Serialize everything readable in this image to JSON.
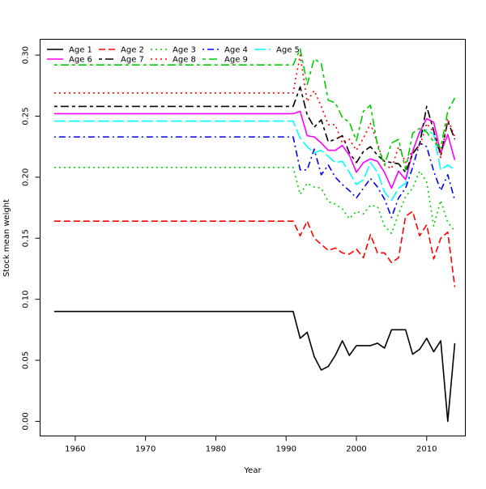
{
  "chart_data": {
    "type": "line",
    "title": "",
    "xlabel": "Year",
    "ylabel": "Stock mean weight",
    "xlim": [
      1955,
      2015.5
    ],
    "ylim": [
      -0.012,
      0.313
    ],
    "xticks": [
      1960,
      1970,
      1980,
      1990,
      2000,
      2010
    ],
    "yticks": [
      0.0,
      0.05,
      0.1,
      0.15,
      0.2,
      0.25,
      0.3
    ],
    "ytick_labels": [
      "0.00",
      "0.05",
      "0.10",
      "0.15",
      "0.20",
      "0.25",
      "0.30"
    ],
    "grid": false,
    "legend_position": "top-left",
    "x": [
      1957,
      1958,
      1959,
      1960,
      1961,
      1962,
      1963,
      1964,
      1965,
      1966,
      1967,
      1968,
      1969,
      1970,
      1971,
      1972,
      1973,
      1974,
      1975,
      1976,
      1977,
      1978,
      1979,
      1980,
      1981,
      1982,
      1983,
      1984,
      1985,
      1986,
      1987,
      1988,
      1989,
      1990,
      1991,
      1992,
      1993,
      1994,
      1995,
      1996,
      1997,
      1998,
      1999,
      2000,
      2001,
      2002,
      2003,
      2004,
      2005,
      2006,
      2007,
      2008,
      2009,
      2010,
      2011,
      2012,
      2013,
      2014
    ],
    "series": [
      {
        "name": "Age 1",
        "color": "#000000",
        "dash": "solid",
        "start_value": 0.09,
        "late": [
          0.09,
          0.068,
          0.073,
          0.053,
          0.042,
          0.045,
          0.054,
          0.066,
          0.054,
          0.062,
          0.062,
          0.062,
          0.064,
          0.06,
          0.075,
          0.075,
          0.075,
          0.055,
          0.059,
          0.068,
          0.057,
          0.066,
          0.0,
          0.064
        ]
      },
      {
        "name": "Age 2",
        "color": "#ff0000",
        "dash": "dashed",
        "start_value": 0.164,
        "late": [
          0.164,
          0.152,
          0.164,
          0.15,
          0.145,
          0.14,
          0.142,
          0.138,
          0.137,
          0.141,
          0.134,
          0.153,
          0.138,
          0.138,
          0.13,
          0.134,
          0.168,
          0.172,
          0.152,
          0.161,
          0.133,
          0.15,
          0.155,
          0.11
        ]
      },
      {
        "name": "Age 3",
        "color": "#00cd00",
        "dash": "dotted",
        "start_value": 0.208,
        "late": [
          0.208,
          0.186,
          0.195,
          0.192,
          0.191,
          0.18,
          0.178,
          0.174,
          0.166,
          0.172,
          0.17,
          0.177,
          0.176,
          0.16,
          0.154,
          0.17,
          0.184,
          0.191,
          0.205,
          0.196,
          0.16,
          0.181,
          0.163,
          0.156
        ]
      },
      {
        "name": "Age 4",
        "color": "#0000ff",
        "dash": "dashdot",
        "start_value": 0.233,
        "late": [
          0.233,
          0.206,
          0.206,
          0.223,
          0.202,
          0.21,
          0.2,
          0.194,
          0.189,
          0.183,
          0.191,
          0.199,
          0.192,
          0.182,
          0.167,
          0.183,
          0.191,
          0.208,
          0.228,
          0.225,
          0.205,
          0.189,
          0.202,
          0.181
        ]
      },
      {
        "name": "Age 5",
        "color": "#00ffff",
        "dash": "longdash",
        "start_value": 0.246,
        "late": [
          0.246,
          0.232,
          0.225,
          0.22,
          0.222,
          0.217,
          0.212,
          0.213,
          0.204,
          0.194,
          0.198,
          0.212,
          0.204,
          0.188,
          0.181,
          0.191,
          0.195,
          0.222,
          0.236,
          0.239,
          0.235,
          0.206,
          0.21,
          0.206
        ]
      },
      {
        "name": "Age 6",
        "color": "#ff00ff",
        "dash": "solid",
        "start_value": 0.252,
        "late": [
          0.252,
          0.254,
          0.234,
          0.233,
          0.228,
          0.222,
          0.222,
          0.226,
          0.218,
          0.204,
          0.212,
          0.215,
          0.213,
          0.204,
          0.191,
          0.205,
          0.198,
          0.221,
          0.237,
          0.248,
          0.245,
          0.22,
          0.235,
          0.214
        ]
      },
      {
        "name": "Age 7",
        "color": "#000000",
        "dash": "twodash",
        "start_value": 0.258,
        "late": [
          0.258,
          0.274,
          0.251,
          0.241,
          0.247,
          0.229,
          0.231,
          0.234,
          0.22,
          0.212,
          0.221,
          0.225,
          0.218,
          0.213,
          0.212,
          0.211,
          0.204,
          0.219,
          0.227,
          0.258,
          0.238,
          0.218,
          0.246,
          0.231
        ]
      },
      {
        "name": "Age 8",
        "color": "#ff0000",
        "dash": "dotted",
        "start_value": 0.269,
        "late": [
          0.269,
          0.3,
          0.262,
          0.271,
          0.258,
          0.243,
          0.243,
          0.228,
          0.231,
          0.222,
          0.232,
          0.244,
          0.228,
          0.21,
          0.207,
          0.225,
          0.212,
          0.222,
          0.225,
          0.244,
          0.237,
          0.216,
          0.248,
          0.233
        ]
      },
      {
        "name": "Age 9",
        "color": "#00cd00",
        "dash": "twodash",
        "start_value": 0.292,
        "late": [
          0.292,
          0.305,
          0.276,
          0.297,
          0.293,
          0.263,
          0.261,
          0.249,
          0.245,
          0.23,
          0.254,
          0.259,
          0.226,
          0.21,
          0.228,
          0.231,
          0.206,
          0.236,
          0.24,
          0.237,
          0.229,
          0.224,
          0.254,
          0.265
        ]
      }
    ]
  }
}
